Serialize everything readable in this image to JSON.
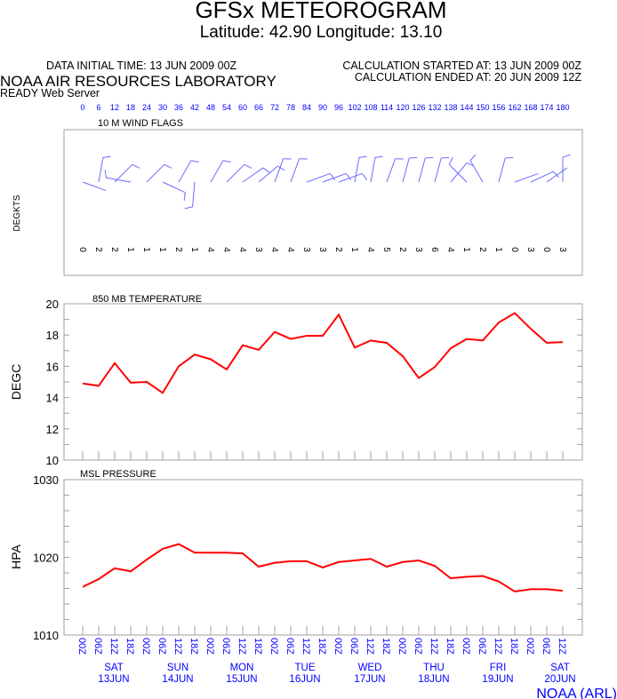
{
  "header": {
    "title": "GFSx METEOROGRAM",
    "location": "Latitude: 42.90 Longitude:  13.10",
    "data_initial_time": "DATA INITIAL TIME: 13 JUN 2009 00Z",
    "calc_started": "CALCULATION STARTED AT: 13 JUN 2009 00Z",
    "calc_ended": "CALCULATION ENDED AT: 20 JUN 2009 12Z",
    "org": "NOAA AIR RESOURCES LABORATORY",
    "server": "READY Web Server",
    "footer": "NOAA (ARL)"
  },
  "colors": {
    "line": "#ff0000",
    "blue": "#0000ff",
    "barb": "#6a6aff",
    "frame": "#a0a0a0"
  },
  "chart_data": [
    {
      "type": "wind_barbs",
      "title": "10 M  WIND FLAGS",
      "ylabel": "DEGKTS",
      "x_hours": [
        0,
        6,
        12,
        18,
        24,
        30,
        36,
        42,
        48,
        54,
        60,
        66,
        72,
        78,
        84,
        90,
        96,
        102,
        108,
        114,
        120,
        126,
        132,
        138,
        144,
        150,
        156,
        162,
        168,
        174,
        180
      ],
      "speeds": [
        0,
        2,
        2,
        1,
        1,
        1,
        2,
        1,
        4,
        4,
        4,
        3,
        4,
        4,
        3,
        3,
        2,
        1,
        4,
        5,
        2,
        3,
        6,
        4,
        1,
        2,
        1,
        0,
        3,
        0,
        3
      ],
      "shaft_angles_deg": [
        -20,
        80,
        45,
        170,
        45,
        -25,
        60,
        -95,
        60,
        45,
        35,
        40,
        70,
        70,
        20,
        20,
        20,
        80,
        80,
        70,
        75,
        75,
        75,
        50,
        135,
        120,
        75,
        20,
        25,
        35,
        90
      ]
    },
    {
      "type": "line",
      "title": "850 MB  TEMPERATURE",
      "ylabel": "DEGC",
      "ylim": [
        10,
        20
      ],
      "yticks": [
        10,
        12,
        14,
        16,
        18,
        20
      ],
      "x_hours": [
        0,
        6,
        12,
        18,
        24,
        30,
        36,
        42,
        48,
        54,
        60,
        66,
        72,
        78,
        84,
        90,
        96,
        102,
        108,
        114,
        120,
        126,
        132,
        138,
        144,
        150,
        156,
        162,
        168,
        174,
        180
      ],
      "values": [
        14.9,
        14.75,
        16.2,
        14.95,
        15.0,
        14.3,
        16.0,
        16.75,
        16.45,
        15.8,
        17.35,
        17.05,
        18.2,
        17.75,
        17.95,
        17.95,
        19.3,
        17.2,
        17.65,
        17.5,
        16.65,
        15.25,
        15.95,
        17.15,
        17.75,
        17.65,
        18.8,
        19.4,
        18.4,
        17.5,
        17.55
      ]
    },
    {
      "type": "line",
      "title": "MSL PRESSURE",
      "ylabel": "HPA",
      "ylim": [
        1010,
        1030
      ],
      "yticks": [
        1010,
        1020,
        1030
      ],
      "x_hours": [
        0,
        6,
        12,
        18,
        24,
        30,
        36,
        42,
        48,
        54,
        60,
        66,
        72,
        78,
        84,
        90,
        96,
        102,
        108,
        114,
        120,
        126,
        132,
        138,
        144,
        150,
        156,
        162,
        168,
        174,
        180
      ],
      "values": [
        1016.2,
        1017.2,
        1018.6,
        1018.2,
        1019.7,
        1021.1,
        1021.7,
        1020.6,
        1020.6,
        1020.6,
        1020.5,
        1018.8,
        1019.3,
        1019.5,
        1019.5,
        1018.7,
        1019.4,
        1019.6,
        1019.8,
        1018.8,
        1019.4,
        1019.6,
        1018.9,
        1017.3,
        1017.5,
        1017.6,
        1016.9,
        1015.6,
        1015.9,
        1015.9,
        1015.7
      ]
    }
  ],
  "time_axis": {
    "hour_labels": [
      "0",
      "6",
      "12",
      "18",
      "24",
      "30",
      "36",
      "42",
      "48",
      "54",
      "60",
      "66",
      "72",
      "78",
      "84",
      "90",
      "96",
      "102",
      "108",
      "114",
      "120",
      "126",
      "132",
      "138",
      "144",
      "150",
      "156",
      "162",
      "168",
      "174",
      "180"
    ],
    "utc_labels": [
      "00Z",
      "06Z",
      "12Z",
      "18Z",
      "00Z",
      "06Z",
      "12Z",
      "18Z",
      "00Z",
      "06Z",
      "12Z",
      "18Z",
      "00Z",
      "06Z",
      "12Z",
      "18Z",
      "00Z",
      "06Z",
      "12Z",
      "18Z",
      "00Z",
      "06Z",
      "12Z",
      "18Z",
      "00Z",
      "06Z",
      "12Z",
      "18Z",
      "00Z",
      "06Z",
      "12Z"
    ],
    "days": [
      {
        "day": "SAT",
        "date": "13JUN"
      },
      {
        "day": "SUN",
        "date": "14JUN"
      },
      {
        "day": "MON",
        "date": "15JUN"
      },
      {
        "day": "TUE",
        "date": "16JUN"
      },
      {
        "day": "WED",
        "date": "17JUN"
      },
      {
        "day": "THU",
        "date": "18JUN"
      },
      {
        "day": "FRI",
        "date": "19JUN"
      },
      {
        "day": "SAT",
        "date": "20JUN"
      }
    ]
  }
}
